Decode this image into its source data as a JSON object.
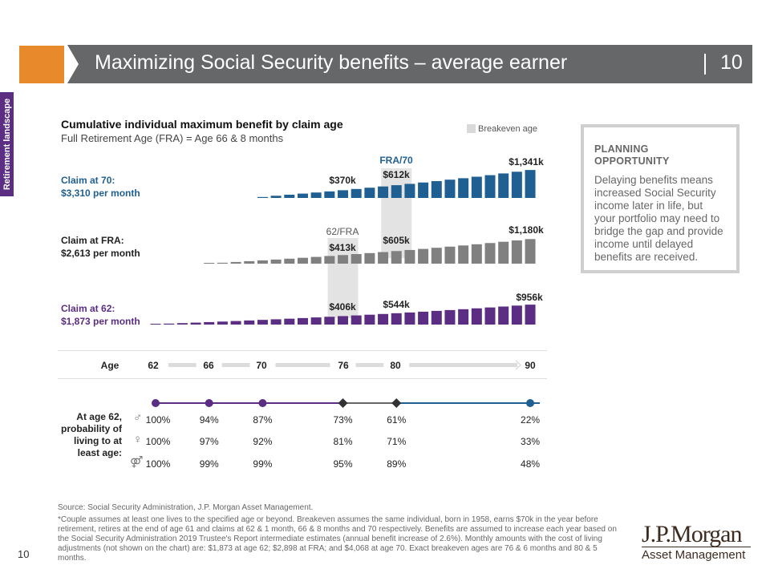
{
  "header": {
    "title": "Maximizing Social Security benefits – average earner",
    "page": "10"
  },
  "side_tab": "Retirement landscape",
  "legend": {
    "breakeven": "Breakeven age",
    "swatch_color": "#d9d9d9"
  },
  "chart_data": {
    "type": "bar",
    "title": "Cumulative individual maximum benefit by claim age",
    "subtitle": "Full Retirement Age (FRA) = Age 66 & 8 months",
    "xlabel": "Age",
    "x_ticks": [
      "62",
      "66",
      "70",
      "76",
      "80",
      "90"
    ],
    "unit": "$k cumulative (approx.)",
    "series": [
      {
        "name": "Claim at 70:",
        "monthly": "$3,310 per month",
        "color": "#1f5f92",
        "ages_start": 70,
        "values": [
          45,
          105,
          156,
          208,
          261,
          314,
          370,
          430,
          491,
          551,
          612,
          676,
          741,
          808,
          877,
          947,
          1019,
          1093,
          1176,
          1258,
          1341
        ],
        "labels": [
          {
            "age": 76,
            "text": "$370k"
          },
          {
            "age": 80,
            "text": "$612k"
          },
          {
            "age": 90,
            "text": "$1,341k"
          }
        ]
      },
      {
        "name": "Claim at FRA:",
        "monthly": "$2,613 per month",
        "color": "#808080",
        "ages_start": 66,
        "values": [
          8,
          44,
          81,
          119,
          158,
          198,
          239,
          281,
          324,
          368,
          413,
          460,
          507,
          556,
          605,
          656,
          708,
          762,
          817,
          873,
          931,
          990,
          1051,
          1115,
          1180
        ],
        "labels": [
          {
            "age": 76,
            "text": "$413k"
          },
          {
            "age": 80,
            "text": "$605k"
          },
          {
            "age": 90,
            "text": "$1,180k"
          }
        ]
      },
      {
        "name": "Claim at 62:",
        "monthly": "$1,873 per month",
        "color": "#5b2d83",
        "ages_start": 62,
        "values": [
          22,
          46,
          69,
          94,
          119,
          144,
          170,
          197,
          225,
          253,
          282,
          312,
          343,
          374,
          406,
          439,
          473,
          508,
          544,
          580,
          618,
          657,
          696,
          737,
          779,
          821,
          865,
          910,
          956
        ],
        "labels": [
          {
            "age": 76,
            "text": "$406k"
          },
          {
            "age": 80,
            "text": "$544k"
          },
          {
            "age": 90,
            "text": "$956k"
          }
        ]
      }
    ],
    "breakeven": [
      {
        "label": "62/FRA",
        "age": 76
      },
      {
        "label": "FRA/70",
        "age": 80
      }
    ]
  },
  "planning": {
    "heading": "PLANNING OPPORTUNITY",
    "text": "Delaying benefits means increased Social Security income later in life, but your portfolio may need to bridge the gap and provide income until delayed benefits are received."
  },
  "probability": {
    "label": "At age 62, probability of living to at least age:",
    "rows": [
      {
        "icon": "male-icon",
        "values": [
          "100%",
          "94%",
          "87%",
          "73%",
          "61%",
          "22%"
        ]
      },
      {
        "icon": "female-icon",
        "values": [
          "100%",
          "97%",
          "92%",
          "81%",
          "71%",
          "33%"
        ]
      },
      {
        "icon": "couple-icon",
        "values": [
          "100%",
          "99%",
          "99%",
          "95%",
          "89%",
          "48%"
        ]
      }
    ]
  },
  "footer": {
    "source": "Source: Social Security Administration, J.P. Morgan Asset Management.",
    "note": "*Couple assumes at least one lives to the specified age or beyond. Breakeven assumes the same individual, born in 1958, earns $70k in the year before retirement, retires at the end of age 61 and claims at 62 & 1 month, 66 & 8 months and 70 respectively. Benefits are assumed to increase each year based on the Social Security Administration 2019 Trustee's Report intermediate estimates (annual benefit increase of 2.6%). Monthly amounts with the cost of living adjustments (not shown on the chart) are: $1,873 at age 62; $2,898 at FRA; and $4,068 at age 70. Exact breakeven ages are 76 & 6 months and 80 & 5 months.",
    "page": "10",
    "logo_line1": "J.P.Morgan",
    "logo_line2": "Asset Management"
  }
}
